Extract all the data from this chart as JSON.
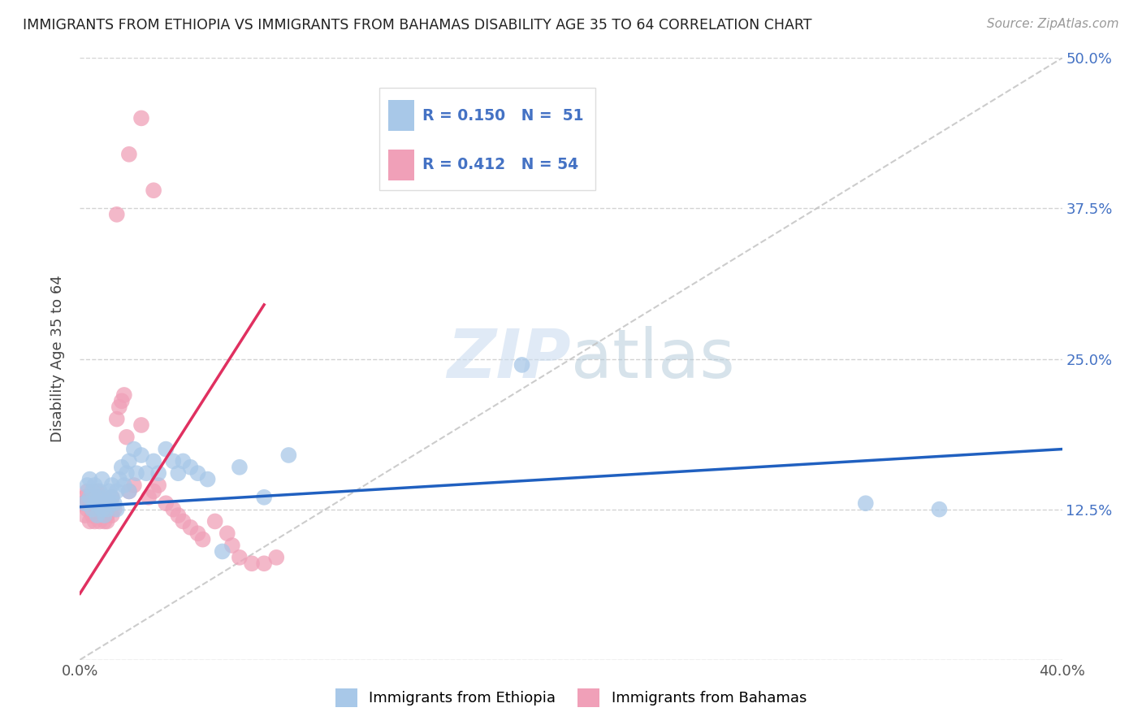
{
  "title": "IMMIGRANTS FROM ETHIOPIA VS IMMIGRANTS FROM BAHAMAS DISABILITY AGE 35 TO 64 CORRELATION CHART",
  "source": "Source: ZipAtlas.com",
  "ylabel": "Disability Age 35 to 64",
  "xlim": [
    0.0,
    0.4
  ],
  "ylim": [
    0.0,
    0.5
  ],
  "xticks": [
    0.0,
    0.1,
    0.2,
    0.3,
    0.4
  ],
  "xtick_labels": [
    "0.0%",
    "",
    "",
    "",
    "40.0%"
  ],
  "yticks": [
    0.0,
    0.125,
    0.25,
    0.375,
    0.5
  ],
  "ytick_labels": [
    "",
    "12.5%",
    "25.0%",
    "37.5%",
    "50.0%"
  ],
  "blue_color": "#a8c8e8",
  "pink_color": "#f0a0b8",
  "blue_line_color": "#2060c0",
  "pink_line_color": "#e03060",
  "legend_label_blue": "Immigrants from Ethiopia",
  "legend_label_pink": "Immigrants from Bahamas",
  "blue_scatter_x": [
    0.002,
    0.003,
    0.004,
    0.004,
    0.005,
    0.005,
    0.006,
    0.006,
    0.007,
    0.007,
    0.008,
    0.008,
    0.009,
    0.009,
    0.01,
    0.01,
    0.011,
    0.011,
    0.012,
    0.012,
    0.013,
    0.013,
    0.014,
    0.015,
    0.015,
    0.016,
    0.017,
    0.018,
    0.019,
    0.02,
    0.02,
    0.022,
    0.023,
    0.025,
    0.027,
    0.03,
    0.032,
    0.035,
    0.038,
    0.04,
    0.042,
    0.045,
    0.048,
    0.052,
    0.058,
    0.065,
    0.075,
    0.085,
    0.18,
    0.32,
    0.35
  ],
  "blue_scatter_y": [
    0.13,
    0.145,
    0.135,
    0.15,
    0.125,
    0.14,
    0.13,
    0.145,
    0.12,
    0.135,
    0.13,
    0.14,
    0.125,
    0.15,
    0.12,
    0.135,
    0.13,
    0.125,
    0.14,
    0.13,
    0.135,
    0.145,
    0.13,
    0.14,
    0.125,
    0.15,
    0.16,
    0.145,
    0.155,
    0.165,
    0.14,
    0.175,
    0.155,
    0.17,
    0.155,
    0.165,
    0.155,
    0.175,
    0.165,
    0.155,
    0.165,
    0.16,
    0.155,
    0.15,
    0.09,
    0.16,
    0.135,
    0.17,
    0.245,
    0.13,
    0.125
  ],
  "pink_scatter_x": [
    0.001,
    0.002,
    0.002,
    0.003,
    0.003,
    0.004,
    0.004,
    0.005,
    0.005,
    0.006,
    0.006,
    0.007,
    0.007,
    0.008,
    0.008,
    0.009,
    0.009,
    0.01,
    0.01,
    0.011,
    0.011,
    0.012,
    0.013,
    0.013,
    0.014,
    0.015,
    0.016,
    0.017,
    0.018,
    0.019,
    0.02,
    0.022,
    0.025,
    0.028,
    0.03,
    0.032,
    0.035,
    0.038,
    0.04,
    0.042,
    0.045,
    0.048,
    0.05,
    0.055,
    0.06,
    0.062,
    0.065,
    0.07,
    0.075,
    0.08,
    0.015,
    0.02,
    0.025,
    0.03
  ],
  "pink_scatter_y": [
    0.13,
    0.12,
    0.135,
    0.125,
    0.14,
    0.115,
    0.13,
    0.12,
    0.135,
    0.115,
    0.13,
    0.12,
    0.14,
    0.115,
    0.13,
    0.12,
    0.135,
    0.115,
    0.13,
    0.115,
    0.12,
    0.13,
    0.12,
    0.135,
    0.125,
    0.2,
    0.21,
    0.215,
    0.22,
    0.185,
    0.14,
    0.145,
    0.195,
    0.135,
    0.14,
    0.145,
    0.13,
    0.125,
    0.12,
    0.115,
    0.11,
    0.105,
    0.1,
    0.115,
    0.105,
    0.095,
    0.085,
    0.08,
    0.08,
    0.085,
    0.37,
    0.42,
    0.45,
    0.39
  ],
  "pink_line_x0": 0.0,
  "pink_line_x1": 0.075,
  "blue_line_x0": 0.0,
  "blue_line_x1": 0.4,
  "blue_line_y0": 0.127,
  "blue_line_y1": 0.175,
  "pink_line_y0": 0.055,
  "pink_line_y1": 0.295
}
